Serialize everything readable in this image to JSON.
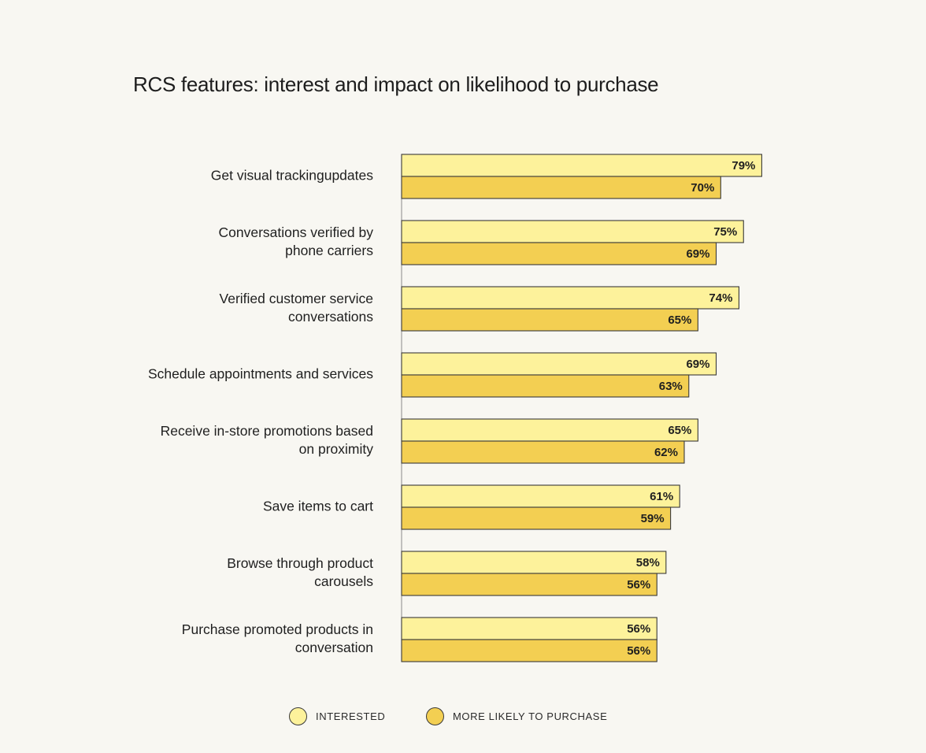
{
  "colors": {
    "interested": "#fdf29b",
    "purchase": "#f3cf52",
    "stroke": "#3a3a3a",
    "axis": "#8a8a8a"
  },
  "chart_data": {
    "type": "bar",
    "orientation": "horizontal",
    "title": "RCS features: interest and impact on likelihood to purchase",
    "categories": [
      [
        "Get visual trackingupdates"
      ],
      [
        "Conversations verified by",
        "phone carriers"
      ],
      [
        "Verified customer service",
        "conversations"
      ],
      [
        "Schedule appointments and services"
      ],
      [
        "Receive in-store promotions based",
        "on proximity"
      ],
      [
        "Save items to cart"
      ],
      [
        "Browse through product",
        "carousels"
      ],
      [
        "Purchase promoted products in",
        "conversation"
      ]
    ],
    "series": [
      {
        "name": "INTERESTED",
        "values": [
          79,
          75,
          74,
          69,
          65,
          61,
          58,
          56
        ],
        "labels": [
          "79%",
          "75%",
          "74%",
          "69%",
          "65%",
          "61%",
          "58%",
          "56%"
        ]
      },
      {
        "name": "MORE LIKELY TO PURCHASE",
        "values": [
          70,
          69,
          65,
          63,
          62,
          59,
          56,
          56
        ],
        "labels": [
          "70%",
          "69%",
          "65%",
          "63%",
          "62%",
          "59%",
          "56%",
          "56%"
        ]
      }
    ],
    "xlim": [
      0,
      100
    ],
    "xlabel": "",
    "ylabel": "",
    "grid": false,
    "legend_position": "bottom-center"
  }
}
